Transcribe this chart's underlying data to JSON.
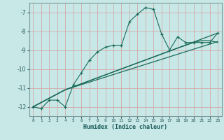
{
  "xlabel": "Humidex (Indice chaleur)",
  "bg_color": "#c8e8e8",
  "grid_color": "#d4a8a8",
  "line_color": "#1a6b5a",
  "xlim": [
    -0.5,
    23.5
  ],
  "ylim": [
    -12.5,
    -6.5
  ],
  "yticks": [
    -12,
    -11,
    -10,
    -9,
    -8,
    -7
  ],
  "line1_x": [
    0,
    1,
    2,
    3,
    4,
    5,
    6,
    7,
    8,
    9,
    10,
    11,
    12,
    13,
    14,
    15,
    16,
    17,
    18,
    19,
    20,
    21,
    22,
    23
  ],
  "line1_y": [
    -12.0,
    -12.1,
    -11.65,
    -11.65,
    -12.0,
    -10.85,
    -10.2,
    -9.55,
    -9.1,
    -8.85,
    -8.75,
    -8.75,
    -7.5,
    -7.1,
    -6.75,
    -6.85,
    -8.15,
    -9.0,
    -8.3,
    -8.6,
    -8.6,
    -8.6,
    -8.6,
    -8.1
  ],
  "line2_x": [
    0,
    4,
    23
  ],
  "line2_y": [
    -12.0,
    -11.1,
    -8.1
  ],
  "line3_x": [
    0,
    4,
    23
  ],
  "line3_y": [
    -12.0,
    -11.1,
    -8.55
  ],
  "line4_x": [
    0,
    4,
    18,
    20,
    21,
    22,
    23
  ],
  "line4_y": [
    -12.0,
    -11.1,
    -8.9,
    -8.6,
    -8.5,
    -8.5,
    -8.6
  ]
}
